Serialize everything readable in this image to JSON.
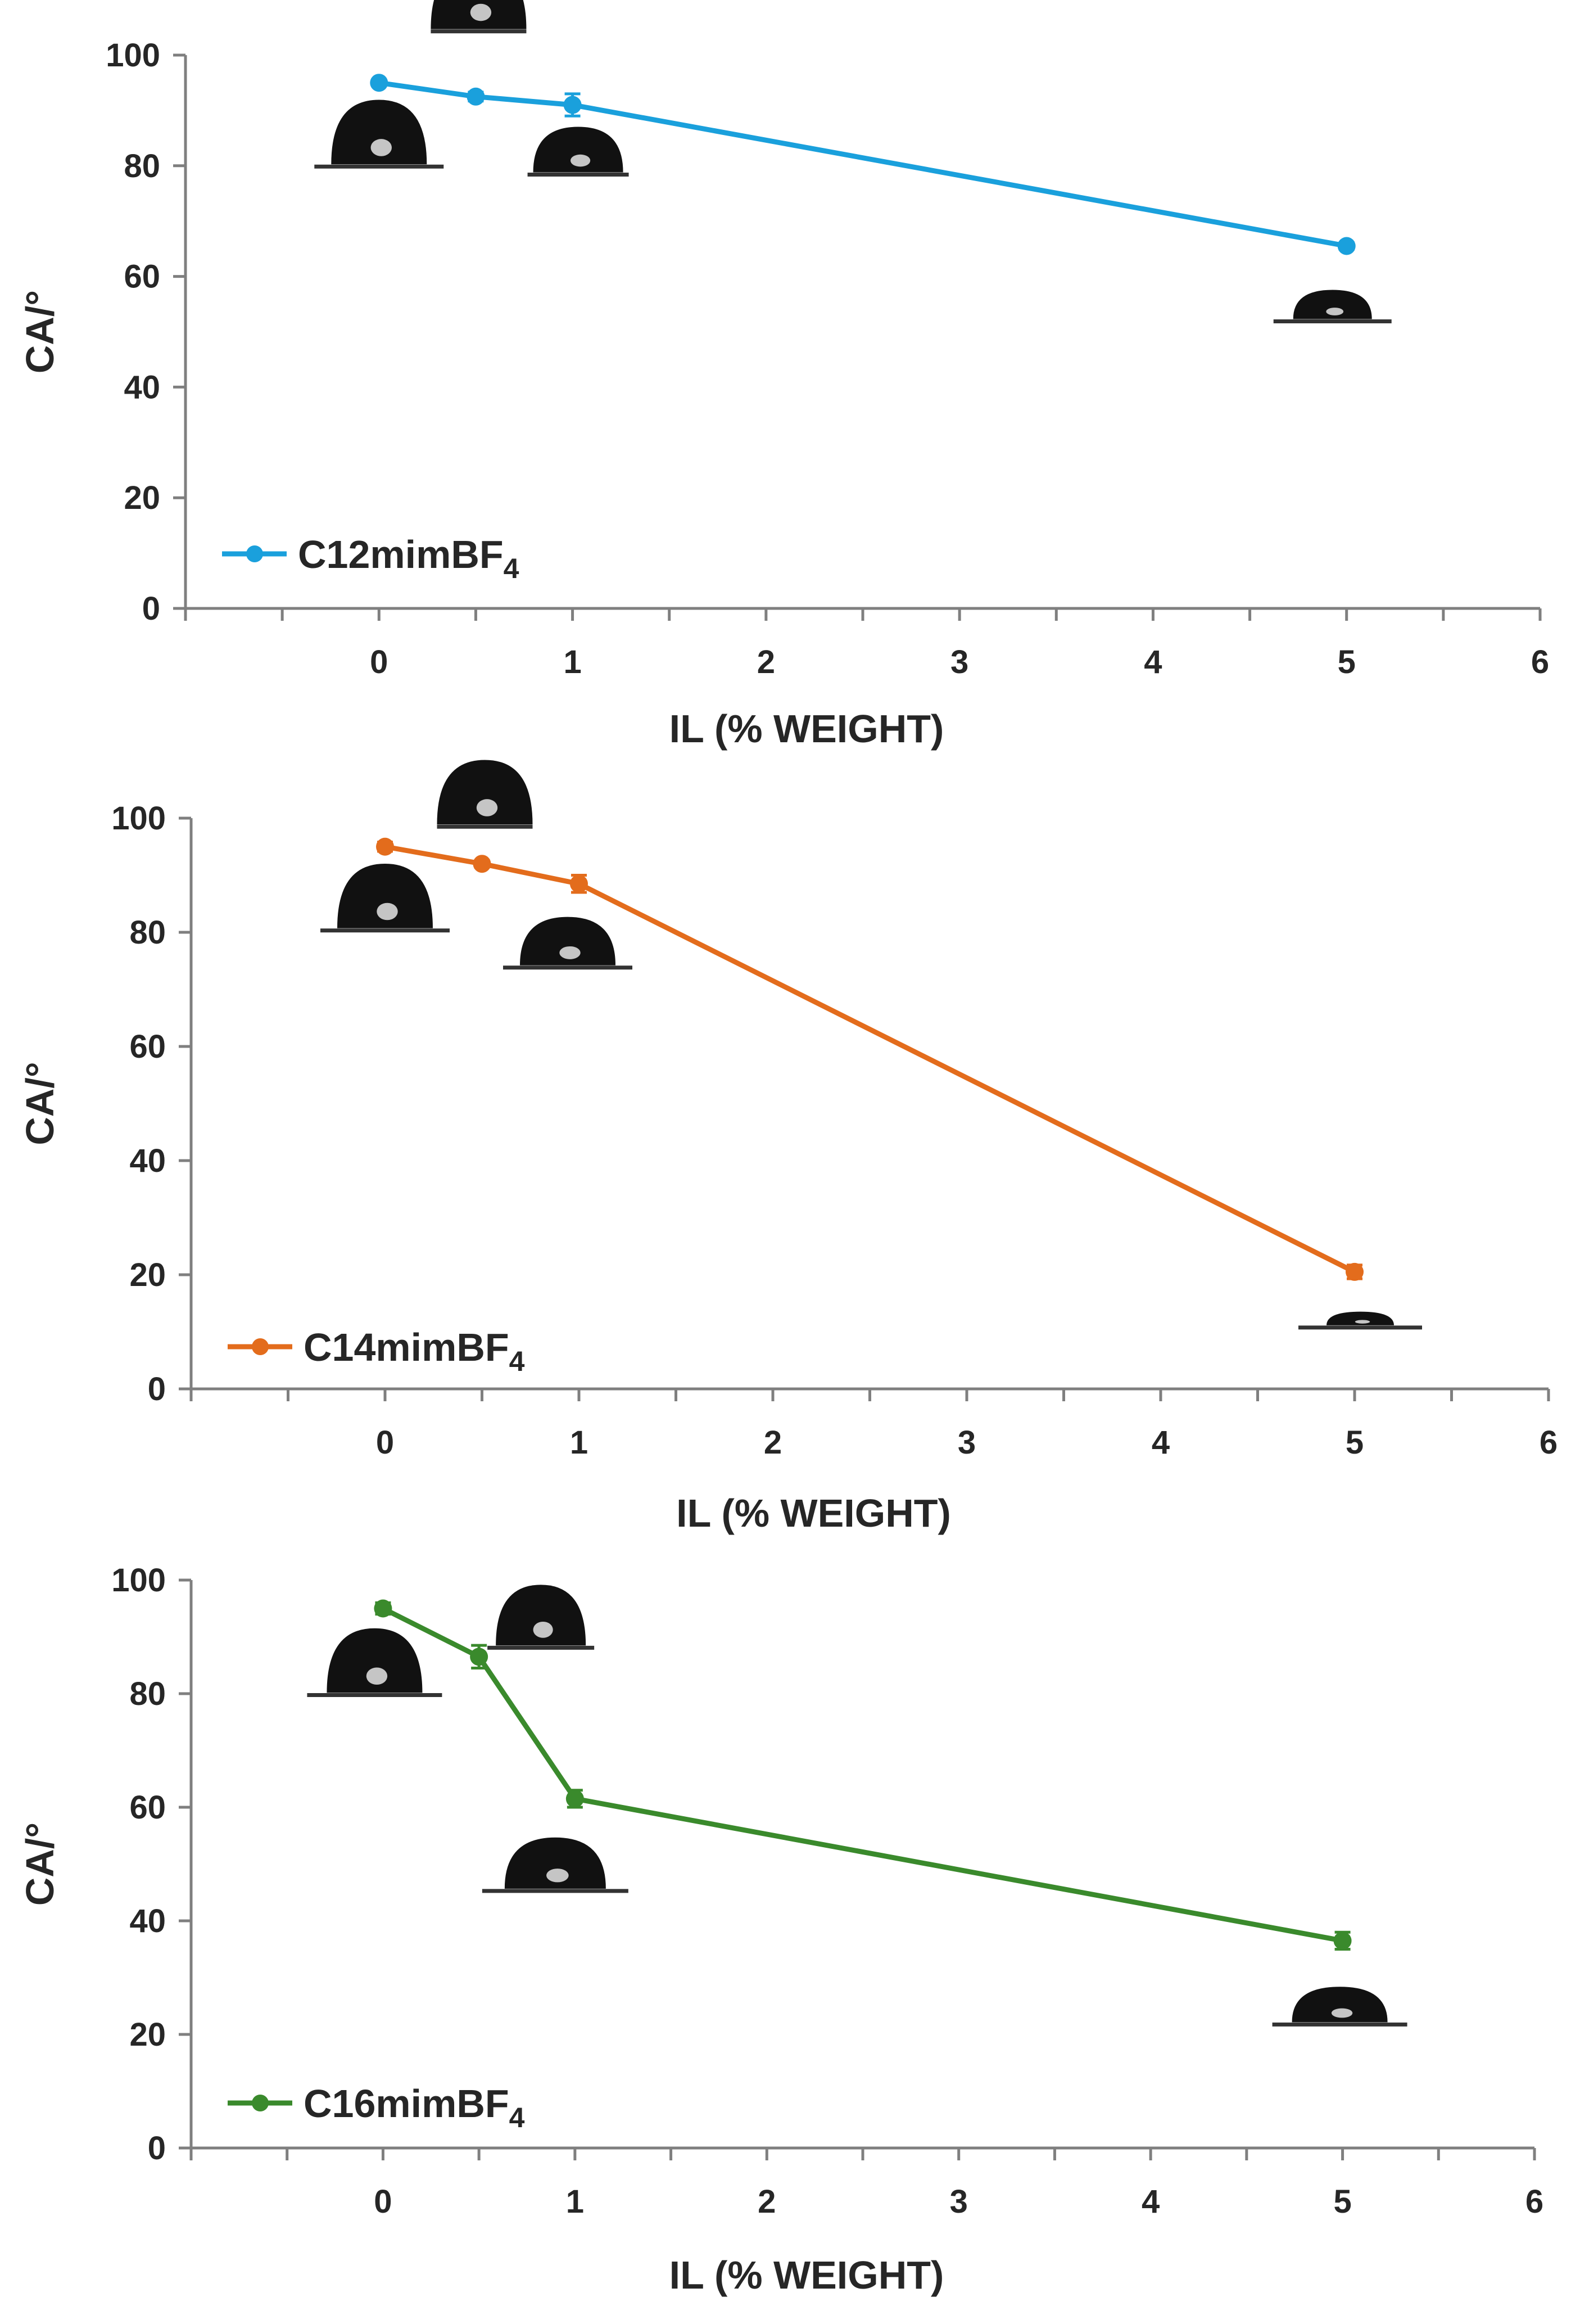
{
  "figure_title": "",
  "chart_data": [
    {
      "type": "line",
      "title": "",
      "xlabel": "IL (% WEIGHT)",
      "ylabel": "CA/°",
      "xlim": [
        -1,
        6
      ],
      "ylim": [
        0,
        100
      ],
      "x_ticks": [
        0,
        1,
        2,
        3,
        4,
        5,
        6
      ],
      "y_ticks": [
        0,
        20,
        40,
        60,
        80,
        100
      ],
      "grid": false,
      "legend_position": "bottom-left",
      "series": [
        {
          "name": "C12mimBF4",
          "legend_main": "C12mimBF",
          "legend_sub": "4",
          "color": "#1aa0dc",
          "x": [
            0,
            0.5,
            1,
            5
          ],
          "values": [
            95,
            92.5,
            91,
            65.5
          ],
          "error": [
            0.5,
            0.8,
            2.0,
            0.6
          ]
        }
      ],
      "droplet_images": [
        {
          "near_x": 0,
          "shape": "dome-high"
        },
        {
          "near_x": 0.5,
          "shape": "dome-high"
        },
        {
          "near_x": 1,
          "shape": "dome-mid"
        },
        {
          "near_x": 5,
          "shape": "dome-flat"
        }
      ]
    },
    {
      "type": "line",
      "title": "",
      "xlabel": "IL (% WEIGHT)",
      "ylabel": "CA/°",
      "xlim": [
        -1,
        6
      ],
      "ylim": [
        0,
        100
      ],
      "x_ticks": [
        0,
        1,
        2,
        3,
        4,
        5,
        6
      ],
      "y_ticks": [
        0,
        20,
        40,
        60,
        80,
        100
      ],
      "grid": false,
      "legend_position": "bottom-left",
      "series": [
        {
          "name": "C14mimBF4",
          "legend_main": "C14mimBF",
          "legend_sub": "4",
          "color": "#e36c1c",
          "x": [
            0,
            0.5,
            1,
            5
          ],
          "values": [
            95,
            92,
            88.5,
            20.5
          ],
          "error": [
            0.8,
            0.6,
            1.5,
            1.2
          ]
        }
      ],
      "droplet_images": [
        {
          "near_x": 0,
          "shape": "dome-high"
        },
        {
          "near_x": 0.5,
          "shape": "dome-high"
        },
        {
          "near_x": 1,
          "shape": "dome-mid"
        },
        {
          "near_x": 5,
          "shape": "dome-very-flat"
        }
      ]
    },
    {
      "type": "line",
      "title": "",
      "xlabel": "IL (% WEIGHT)",
      "ylabel": "CA/°",
      "xlim": [
        -1,
        6
      ],
      "ylim": [
        0,
        100
      ],
      "x_ticks": [
        0,
        1,
        2,
        3,
        4,
        5,
        6
      ],
      "y_ticks": [
        0,
        20,
        40,
        60,
        80,
        100
      ],
      "grid": false,
      "legend_position": "bottom-left",
      "series": [
        {
          "name": "C16mimBF4",
          "legend_main": "C16mimBF",
          "legend_sub": "4",
          "color": "#3a8a2c",
          "x": [
            0,
            0.5,
            1,
            5
          ],
          "values": [
            95,
            86.5,
            61.5,
            36.5
          ],
          "error": [
            1.0,
            2.0,
            1.5,
            1.5
          ]
        }
      ],
      "droplet_images": [
        {
          "near_x": 0,
          "shape": "dome-high"
        },
        {
          "near_x": 0.5,
          "shape": "dome-high"
        },
        {
          "near_x": 1,
          "shape": "dome-mid"
        },
        {
          "near_x": 5,
          "shape": "dome-flat"
        }
      ]
    }
  ]
}
